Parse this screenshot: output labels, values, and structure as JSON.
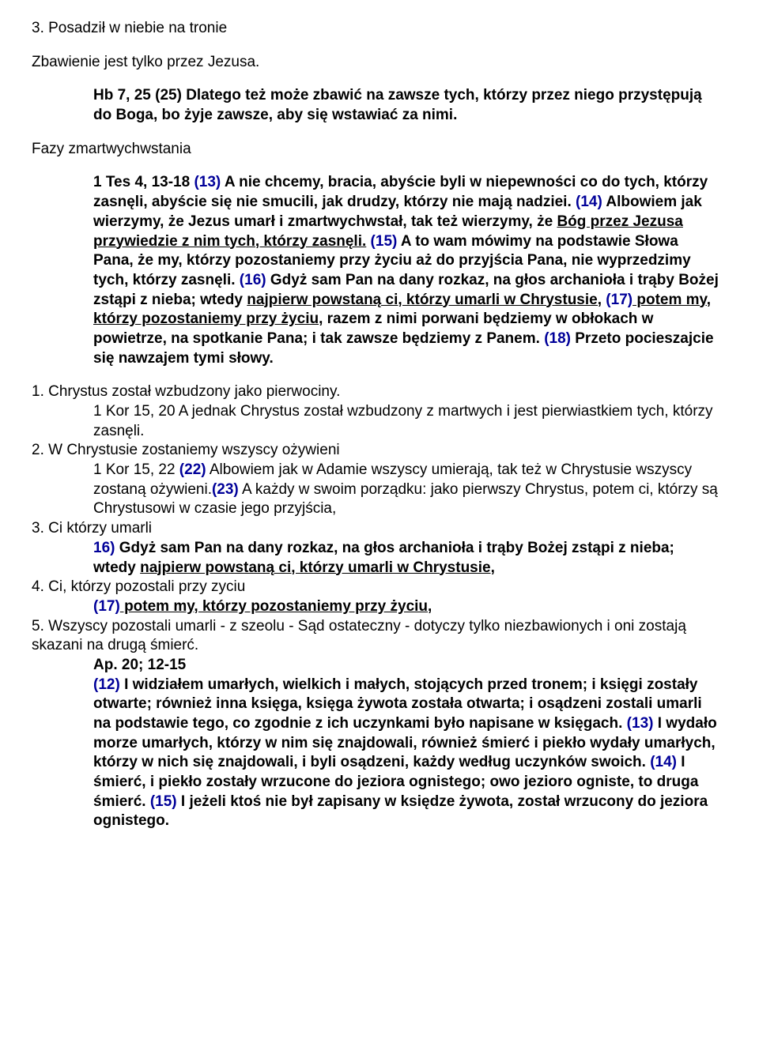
{
  "line1": "3. Posadził w niebie na tronie",
  "line2": "Zbawienie jest tylko przez Jezusa.",
  "hb": {
    "text": "Hb 7, 25 (25) Dlatego też może zbawić na zawsze tych, którzy przez niego przystępują do Boga, bo żyje zawsze, aby się wstawiać za nimi."
  },
  "fazy": "Fazy zmartwychwstania",
  "tes": {
    "a": "1 Tes  4, 13-18 ",
    "r13": "(13)",
    "b": " A nie chcemy, bracia, abyście byli w niepewności co do tych, którzy zasnęli, abyście się nie smucili, jak drudzy, którzy nie mają nadziei. ",
    "r14": "(14)",
    "c": " Albowiem jak wierzymy, że Jezus umarł i zmartwychwstał, tak też wierzymy, że ",
    "c_u": "Bóg przez Jezusa przywiedzie z nim tych, którzy zasnęli.",
    "r15": " (15)",
    "d": " A to wam mówimy na podstawie Słowa Pana, że my, którzy pozostaniemy przy życiu aż do przyjścia Pana, nie wyprzedzimy tych, którzy zasnęli. ",
    "r16": "(16)",
    "e": " Gdyż sam Pan na dany rozkaz, na głos archanioła i trąby Bożej zstąpi z nieba; wtedy ",
    "e_u": "najpierw powstaną ci, którzy umarli w Chrystusie,",
    "r17": " (17)",
    "f_u": " potem my, którzy pozostaniemy przy życiu",
    "f": ", razem z nimi porwani będziemy w obłokach w powietrze, na spotkanie Pana; i tak zawsze będziemy z Panem. ",
    "r18": "(18)",
    "g": " Przeto pocieszajcie się nawzajem tymi słowy."
  },
  "p1": {
    "h": "1. Chrystus został wzbudzony jako pierwociny.",
    "t": "1 Kor 15, 20 A jednak Chrystus został wzbudzony z martwych i jest pierwiastkiem tych, którzy zasnęli."
  },
  "p2": {
    "h": "2. W Chrystusie zostaniemy wszyscy ożywieni",
    "a": "1 Kor 15, 22 ",
    "r22": "(22)",
    "b": " Albowiem jak w Adamie wszyscy umierają, tak też w Chrystusie wszyscy zostaną ożywieni.",
    "r23": "(23)",
    "c": " A każdy w swoim porządku: jako pierwszy Chrystus, potem ci, którzy są Chrystusowi w czasie jego przyjścia,"
  },
  "p3": {
    "h": "3. Ci którzy umarli",
    "r16": "16)",
    "a": " Gdyż sam Pan na dany rozkaz, na głos archanioła i trąby Bożej zstąpi z nieba; wtedy ",
    "a_u": "najpierw powstaną ci, którzy umarli w Chrystusie,"
  },
  "p4": {
    "h": "4. Ci, którzy pozostali przy zyciu",
    "r17": "(17)",
    "a_u": " potem my, którzy pozostaniemy przy życiu",
    "a_end": ","
  },
  "p5": {
    "h1": "5. Wszyscy pozostali umarli - z szeolu - Sąd ostateczny - dotyczy tylko niezbawionych i oni zostają skazani na drugą śmierć.",
    "ap": "Ap. 20; 12-15",
    "r12": "(12)",
    "a": " I widziałem umarłych, wielkich i małych, stojących przed tronem; i księgi zostały otwarte; również inna księga, księga żywota została otwarta; i osądzeni zostali umarli na podstawie tego, co zgodnie z ich uczynkami było napisane w księgach. ",
    "r13": "(13)",
    "b": " I wydało morze umarłych, którzy w nim się znajdowali, również śmierć i piekło wydały umarłych, którzy w nich się znajdowali, i byli osądzeni, każdy według uczynków swoich. ",
    "r14": "(14)",
    "c": " I śmierć, i piekło zostały wrzucone do jeziora ognistego; owo jezioro ogniste, to druga śmierć. ",
    "r15": "(15)",
    "d": " I jeżeli ktoś nie był zapisany w księdze żywota, został wrzucony do jeziora ognistego."
  }
}
